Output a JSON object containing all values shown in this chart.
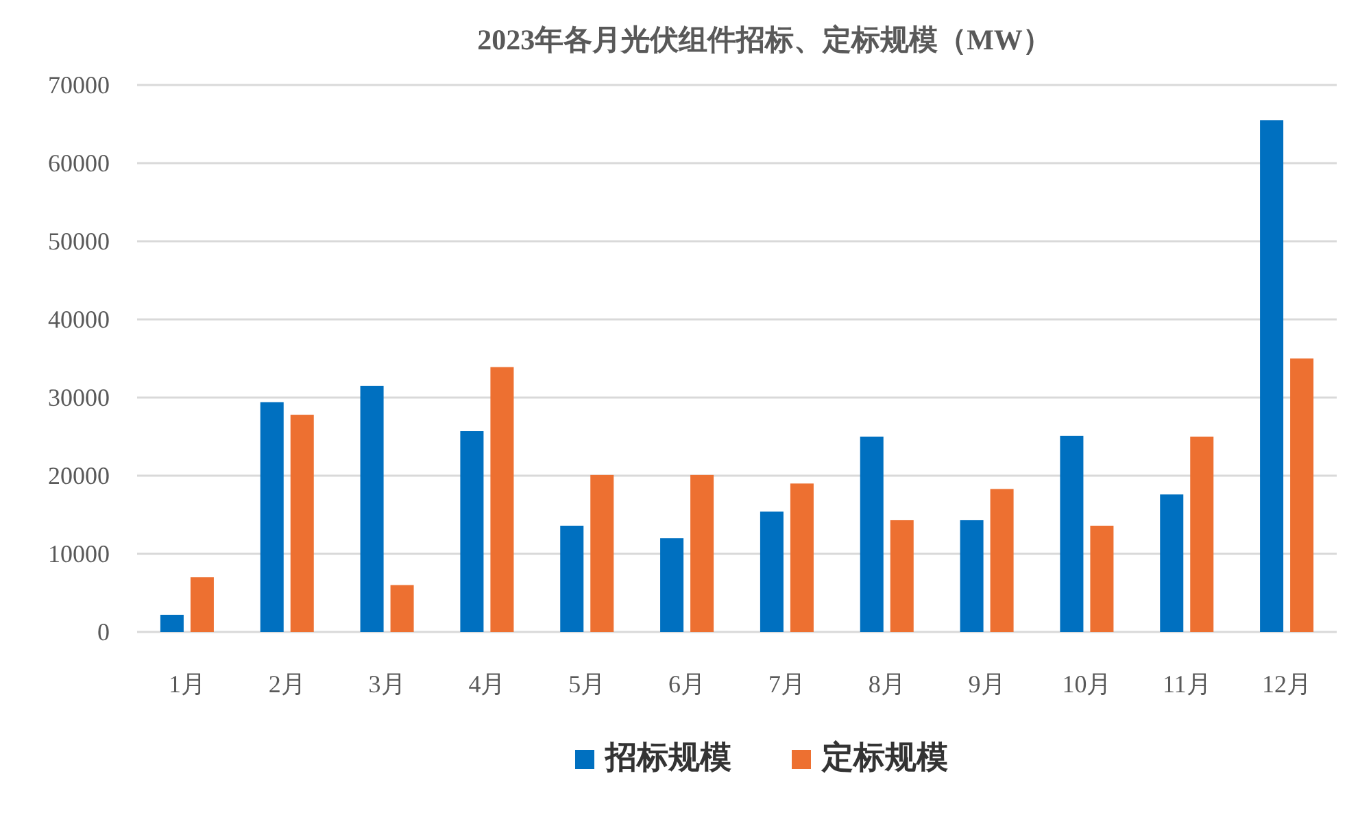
{
  "chart_data": {
    "type": "bar",
    "title": "2023年各月光伏组件招标、定标规模（MW）",
    "categories": [
      "1月",
      "2月",
      "3月",
      "4月",
      "5月",
      "6月",
      "7月",
      "8月",
      "9月",
      "10月",
      "11月",
      "12月"
    ],
    "series": [
      {
        "name": "招标规模",
        "color": "#0070c0",
        "values": [
          2200,
          29400,
          31500,
          25700,
          13600,
          12000,
          15400,
          25000,
          14300,
          25100,
          17600,
          65500
        ]
      },
      {
        "name": "定标规模",
        "color": "#ed7031",
        "values": [
          7000,
          27800,
          6000,
          33900,
          20100,
          20100,
          19000,
          14300,
          18300,
          13600,
          25000,
          35000
        ]
      }
    ],
    "ylim": [
      0,
      70000
    ],
    "yticks": [
      0,
      10000,
      20000,
      30000,
      40000,
      50000,
      60000,
      70000
    ],
    "grid": "y",
    "legend": "bottom"
  }
}
